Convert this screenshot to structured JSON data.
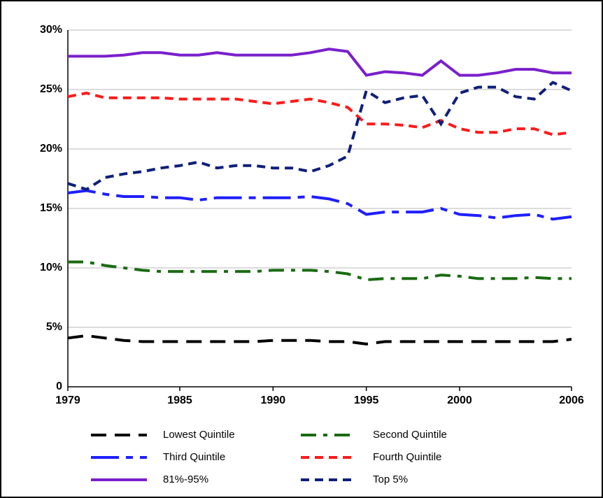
{
  "chart_data": {
    "type": "line",
    "x": [
      1979,
      1980,
      1981,
      1982,
      1983,
      1984,
      1985,
      1986,
      1987,
      1988,
      1989,
      1990,
      1991,
      1992,
      1993,
      1994,
      1995,
      1996,
      1997,
      1998,
      1999,
      2000,
      2001,
      2002,
      2003,
      2004,
      2005,
      2006
    ],
    "xlim": [
      1979,
      2006
    ],
    "xticks": [
      1979,
      1985,
      1990,
      1995,
      2000,
      2006
    ],
    "ylim": [
      0,
      30
    ],
    "yticks": [
      0,
      {
        "value": 5,
        "label": "5%"
      },
      {
        "value": 10,
        "label": "10%"
      },
      {
        "value": 15,
        "label": "15%"
      },
      {
        "value": 20,
        "label": "20%"
      },
      {
        "value": 25,
        "label": "25%"
      },
      {
        "value": 30,
        "label": "30%"
      }
    ],
    "grid": true,
    "series": [
      {
        "name": "Lowest Quintile",
        "color": "#000000",
        "dash": "22,12",
        "values": [
          4.1,
          4.3,
          4.1,
          3.9,
          3.8,
          3.8,
          3.8,
          3.8,
          3.8,
          3.8,
          3.8,
          3.9,
          3.9,
          3.9,
          3.8,
          3.8,
          3.6,
          3.8,
          3.8,
          3.8,
          3.8,
          3.8,
          3.8,
          3.8,
          3.8,
          3.8,
          3.8,
          4.0
        ]
      },
      {
        "name": "Second Quintile",
        "color": "#1a6b12",
        "dash": "22,10,6,10",
        "values": [
          10.5,
          10.5,
          10.2,
          10.0,
          9.8,
          9.7,
          9.7,
          9.7,
          9.7,
          9.7,
          9.7,
          9.8,
          9.8,
          9.8,
          9.7,
          9.5,
          9.0,
          9.1,
          9.1,
          9.1,
          9.4,
          9.3,
          9.1,
          9.1,
          9.1,
          9.2,
          9.1,
          9.1
        ]
      },
      {
        "name": "Third Quintile",
        "color": "#1f1fff",
        "dash": "40,10,10,10",
        "values": [
          16.3,
          16.5,
          16.2,
          16.0,
          16.0,
          15.9,
          15.9,
          15.7,
          15.9,
          15.9,
          15.9,
          15.9,
          15.9,
          16.0,
          15.8,
          15.4,
          14.5,
          14.7,
          14.7,
          14.7,
          15.0,
          14.5,
          14.4,
          14.2,
          14.4,
          14.5,
          14.1,
          14.3
        ]
      },
      {
        "name": "Fourth Quintile",
        "color": "#ff1a1a",
        "dash": "12,8",
        "values": [
          24.4,
          24.7,
          24.3,
          24.3,
          24.3,
          24.3,
          24.2,
          24.2,
          24.2,
          24.2,
          24.0,
          23.8,
          24.0,
          24.2,
          23.9,
          23.5,
          22.1,
          22.1,
          22.0,
          21.8,
          22.4,
          21.7,
          21.4,
          21.4,
          21.7,
          21.7,
          21.2,
          21.4
        ]
      },
      {
        "name": "81%-95%",
        "color": "#7a1fcc",
        "dash": "none",
        "values": [
          27.8,
          27.8,
          27.8,
          27.9,
          28.1,
          28.1,
          27.9,
          27.9,
          28.1,
          27.9,
          27.9,
          27.9,
          27.9,
          28.1,
          28.4,
          28.2,
          26.2,
          26.5,
          26.4,
          26.2,
          27.4,
          26.2,
          26.2,
          26.4,
          26.7,
          26.7,
          26.4,
          26.4
        ]
      },
      {
        "name": "Top 5%",
        "color": "#0f1f7a",
        "dash": "12,8",
        "values": [
          17.1,
          16.6,
          17.6,
          17.9,
          18.1,
          18.4,
          18.6,
          18.9,
          18.4,
          18.6,
          18.6,
          18.4,
          18.4,
          18.1,
          18.6,
          19.4,
          24.9,
          23.9,
          24.3,
          24.5,
          22.1,
          24.7,
          25.2,
          25.2,
          24.4,
          24.2,
          25.6,
          24.9
        ]
      }
    ]
  }
}
